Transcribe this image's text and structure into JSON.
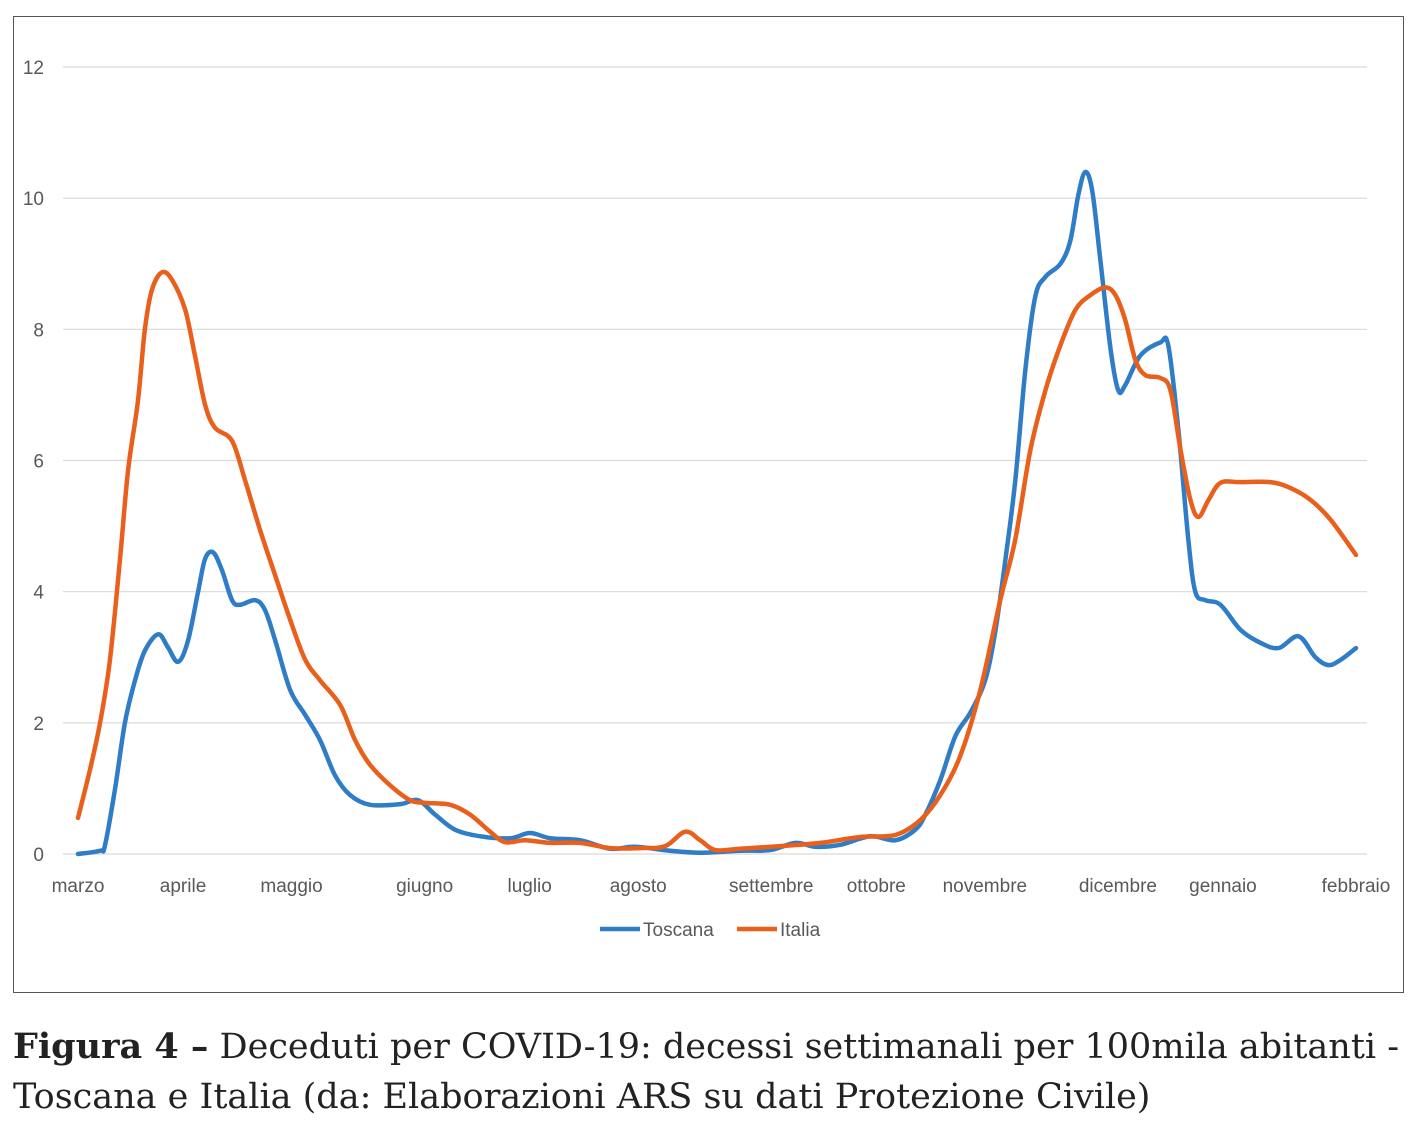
{
  "chart_data": {
    "type": "line",
    "title": "",
    "xlabel": "",
    "ylabel": "",
    "x_units": "days since start of marzo",
    "xlim": [
      0,
      365
    ],
    "ylim": [
      0,
      12
    ],
    "yticks": [
      0,
      2,
      4,
      6,
      8,
      10,
      12
    ],
    "grid": true,
    "legend_position": "bottom-center",
    "xticks": [
      {
        "x": 0,
        "label": "marzo"
      },
      {
        "x": 30,
        "label": "aprile"
      },
      {
        "x": 61,
        "label": "maggio"
      },
      {
        "x": 99,
        "label": "giugno"
      },
      {
        "x": 129,
        "label": "luglio"
      },
      {
        "x": 160,
        "label": "agosto"
      },
      {
        "x": 198,
        "label": "settembre"
      },
      {
        "x": 228,
        "label": "ottobre"
      },
      {
        "x": 259,
        "label": "novembre"
      },
      {
        "x": 297,
        "label": "dicembre"
      },
      {
        "x": 327,
        "label": "gennaio"
      },
      {
        "x": 365,
        "label": "febbraio"
      }
    ],
    "series": [
      {
        "name": "Toscana",
        "color": "#2E7DC6",
        "points": [
          [
            0,
            0.0
          ],
          [
            6.3,
            0.05
          ],
          [
            7.7,
            0.13
          ],
          [
            10.6,
            1.0
          ],
          [
            13.4,
            2.0
          ],
          [
            16.3,
            2.65
          ],
          [
            19.1,
            3.1
          ],
          [
            22.9,
            3.35
          ],
          [
            25.7,
            3.15
          ],
          [
            28.6,
            2.93
          ],
          [
            31.4,
            3.25
          ],
          [
            34.3,
            4.0
          ],
          [
            36.3,
            4.5
          ],
          [
            38.6,
            4.6
          ],
          [
            41.1,
            4.33
          ],
          [
            44,
            3.87
          ],
          [
            46.3,
            3.8
          ],
          [
            50.6,
            3.87
          ],
          [
            53.4,
            3.72
          ],
          [
            56.3,
            3.26
          ],
          [
            60.6,
            2.5
          ],
          [
            64.9,
            2.12
          ],
          [
            69.1,
            1.74
          ],
          [
            73.4,
            1.2
          ],
          [
            77.7,
            0.9
          ],
          [
            83.4,
            0.75
          ],
          [
            92,
            0.76
          ],
          [
            97.1,
            0.82
          ],
          [
            102,
            0.6
          ],
          [
            107.7,
            0.37
          ],
          [
            114.9,
            0.27
          ],
          [
            123.4,
            0.24
          ],
          [
            129.1,
            0.32
          ],
          [
            134.9,
            0.24
          ],
          [
            143.4,
            0.21
          ],
          [
            152,
            0.08
          ],
          [
            159.1,
            0.11
          ],
          [
            169.1,
            0.05
          ],
          [
            177.7,
            0.02
          ],
          [
            189.1,
            0.05
          ],
          [
            197.7,
            0.06
          ],
          [
            204.9,
            0.17
          ],
          [
            210.6,
            0.11
          ],
          [
            217.7,
            0.14
          ],
          [
            226.3,
            0.27
          ],
          [
            233.4,
            0.21
          ],
          [
            239.1,
            0.37
          ],
          [
            242,
            0.6
          ],
          [
            246.3,
            1.13
          ],
          [
            250.6,
            1.8
          ],
          [
            254.9,
            2.16
          ],
          [
            259.1,
            2.65
          ],
          [
            262,
            3.4
          ],
          [
            264.9,
            4.5
          ],
          [
            267.7,
            5.7
          ],
          [
            270.6,
            7.4
          ],
          [
            273.4,
            8.5
          ],
          [
            276.3,
            8.8
          ],
          [
            280.6,
            9.0
          ],
          [
            283.4,
            9.35
          ],
          [
            285.7,
            10.05
          ],
          [
            287.7,
            10.4
          ],
          [
            289.7,
            10.1
          ],
          [
            292,
            9.05
          ],
          [
            294.9,
            7.7
          ],
          [
            297.1,
            7.07
          ],
          [
            299.1,
            7.15
          ],
          [
            303.4,
            7.6
          ],
          [
            309.1,
            7.8
          ],
          [
            311.4,
            7.75
          ],
          [
            314.3,
            6.45
          ],
          [
            317.1,
            4.8
          ],
          [
            319.1,
            4.0
          ],
          [
            322,
            3.87
          ],
          [
            326.3,
            3.8
          ],
          [
            332,
            3.42
          ],
          [
            337.7,
            3.22
          ],
          [
            342.9,
            3.14
          ],
          [
            348.6,
            3.32
          ],
          [
            353.4,
            3.0
          ],
          [
            357.1,
            2.88
          ],
          [
            360.6,
            2.96
          ],
          [
            365,
            3.14
          ]
        ]
      },
      {
        "name": "Italia",
        "color": "#E8601C",
        "points": [
          [
            0,
            0.55
          ],
          [
            3.4,
            1.28
          ],
          [
            6.3,
            2.0
          ],
          [
            9.1,
            2.95
          ],
          [
            12,
            4.5
          ],
          [
            14.3,
            5.85
          ],
          [
            17.1,
            6.9
          ],
          [
            19.1,
            8.0
          ],
          [
            21.1,
            8.6
          ],
          [
            24,
            8.87
          ],
          [
            26.9,
            8.75
          ],
          [
            30.6,
            8.3
          ],
          [
            33.4,
            7.6
          ],
          [
            36.3,
            6.85
          ],
          [
            39.1,
            6.5
          ],
          [
            44,
            6.3
          ],
          [
            47.7,
            5.7
          ],
          [
            52,
            4.94
          ],
          [
            56.3,
            4.25
          ],
          [
            60.6,
            3.57
          ],
          [
            64.9,
            2.96
          ],
          [
            69.1,
            2.65
          ],
          [
            74.9,
            2.27
          ],
          [
            79.1,
            1.74
          ],
          [
            83.4,
            1.36
          ],
          [
            89.1,
            1.05
          ],
          [
            94.9,
            0.82
          ],
          [
            99.1,
            0.78
          ],
          [
            106.3,
            0.75
          ],
          [
            112,
            0.6
          ],
          [
            117.7,
            0.34
          ],
          [
            122,
            0.18
          ],
          [
            127.7,
            0.21
          ],
          [
            134.9,
            0.17
          ],
          [
            143.4,
            0.17
          ],
          [
            152,
            0.09
          ],
          [
            160.6,
            0.09
          ],
          [
            167.7,
            0.12
          ],
          [
            173.4,
            0.34
          ],
          [
            177.7,
            0.21
          ],
          [
            182,
            0.06
          ],
          [
            189.1,
            0.08
          ],
          [
            200.6,
            0.12
          ],
          [
            212,
            0.17
          ],
          [
            223.4,
            0.26
          ],
          [
            233.4,
            0.29
          ],
          [
            240.6,
            0.52
          ],
          [
            246.3,
            0.9
          ],
          [
            252,
            1.5
          ],
          [
            257.7,
            2.5
          ],
          [
            263.4,
            3.87
          ],
          [
            267.7,
            4.8
          ],
          [
            272,
            6.16
          ],
          [
            276.3,
            7.07
          ],
          [
            280.6,
            7.76
          ],
          [
            284.9,
            8.3
          ],
          [
            289.1,
            8.52
          ],
          [
            293.4,
            8.64
          ],
          [
            296.3,
            8.52
          ],
          [
            299.1,
            8.14
          ],
          [
            302,
            7.53
          ],
          [
            304.9,
            7.3
          ],
          [
            309.1,
            7.26
          ],
          [
            312,
            7.07
          ],
          [
            314.9,
            6.16
          ],
          [
            317.7,
            5.4
          ],
          [
            320,
            5.14
          ],
          [
            322.9,
            5.4
          ],
          [
            326.3,
            5.66
          ],
          [
            332,
            5.67
          ],
          [
            340.6,
            5.67
          ],
          [
            346.3,
            5.58
          ],
          [
            352,
            5.4
          ],
          [
            357.7,
            5.1
          ],
          [
            365,
            4.56
          ]
        ]
      }
    ]
  },
  "caption": {
    "label": "Figura 4 –",
    "text": "Deceduti per COVID-19: decessi settimanali per 100mila abitanti - Toscana e Italia (da: Elaborazioni ARS su dati Protezione Civile)"
  }
}
